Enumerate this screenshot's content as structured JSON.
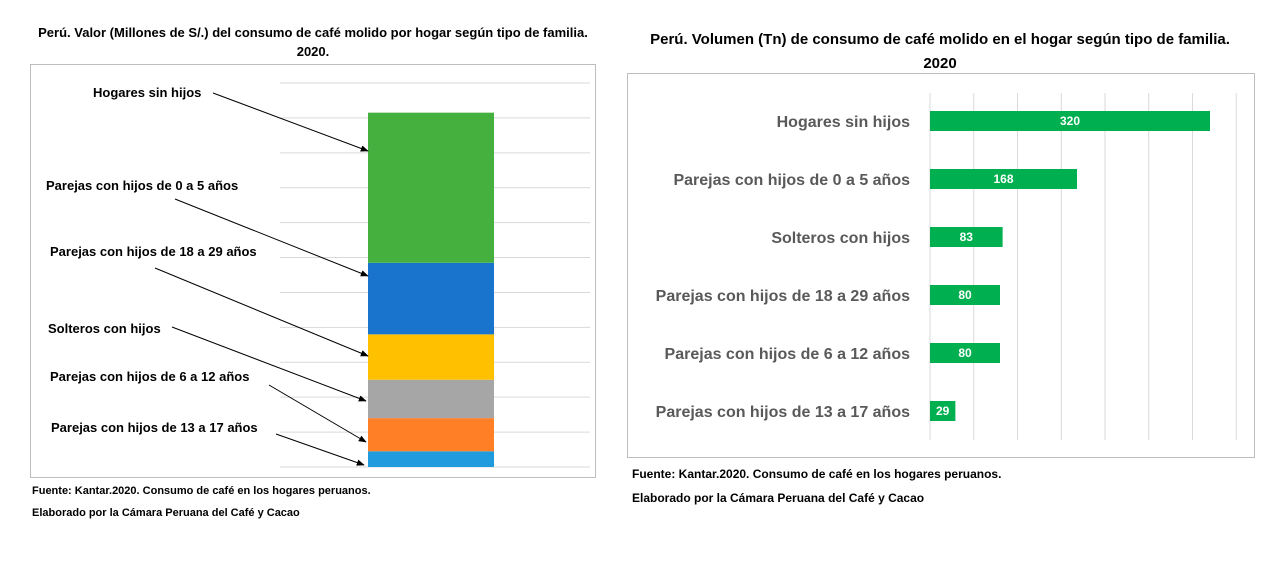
{
  "chart_data": [
    {
      "type": "bar",
      "stacked": true,
      "title": "Perú. Valor (Millones de S/.) del consumo de café molido por hogar según tipo de familia. 2020.",
      "categories": [
        "Hogares sin hijos",
        "Parejas con hijos de 0 a 5 años",
        "Parejas con hijos de 18 a 29 años",
        "Solteros con hijos",
        "Parejas con hijos de 6 a 12 años",
        "Parejas con hijos de 13 a 17 años"
      ],
      "values": [
        43,
        20.5,
        13,
        11,
        9.5,
        4.5
      ],
      "colors": [
        "#46b03f",
        "#1874cd",
        "#ffc000",
        "#a6a6a6",
        "#ff7f27",
        "#1f9bde"
      ],
      "ylim": [
        0,
        110
      ],
      "grid": true,
      "legend": "left, arrow callouts",
      "source": "Fuente: Kantar.2020. Consumo de café en los hogares peruanos.",
      "credit": "Elaborado por la Cámara Peruana del Café y Cacao"
    },
    {
      "type": "bar",
      "orientation": "horizontal",
      "title": "Perú. Volumen (Tn) de consumo de café molido en el hogar según tipo de familia. 2020",
      "categories": [
        "Hogares sin hijos",
        "Parejas con hijos de 0 a 5 años",
        "Solteros  con hijos",
        "Parejas con hijos de 18 a 29 años",
        "Parejas con hijos de 6 a 12 años",
        "Parejas con hijos de 13 a 17 años"
      ],
      "values": [
        320,
        168,
        83,
        80,
        80,
        29
      ],
      "xlim": [
        0,
        350
      ],
      "grid": true,
      "bar_color": "#00b050",
      "source": "Fuente: Kantar.2020. Consumo de café en los hogares peruanos.",
      "credit": "Elaborado por la Cámara Peruana del Café y Cacao"
    }
  ]
}
